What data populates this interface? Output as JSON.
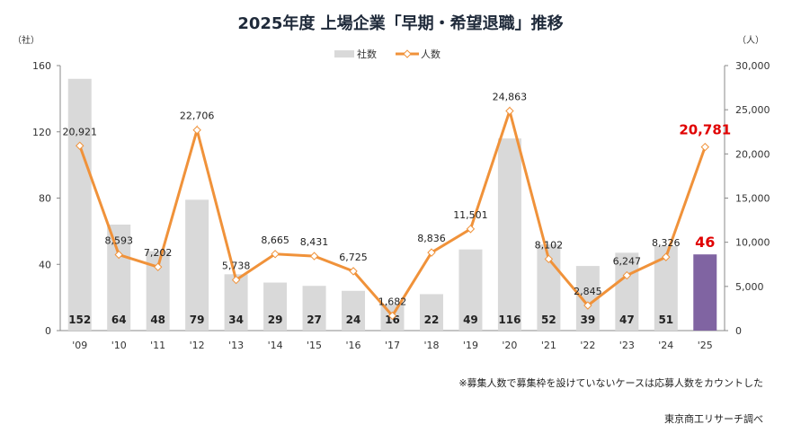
{
  "chart_data": {
    "type": "bar+line",
    "title": "2025年度  上場企業「早期・希望退職」推移",
    "ylabel_left": "（社）",
    "ylabel_right": "（人）",
    "categories": [
      "'09",
      "'10",
      "'11",
      "'12",
      "'13",
      "'14",
      "'15",
      "'16",
      "'17",
      "'18",
      "'19",
      "'20",
      "'21",
      "'22",
      "'23",
      "'24",
      "'25"
    ],
    "ylim_left": [
      0,
      160
    ],
    "yticks_left": [
      0,
      40,
      80,
      120,
      160
    ],
    "ylim_right": [
      0,
      30000
    ],
    "yticks_right": [
      "0",
      "5,000",
      "10,000",
      "15,000",
      "20,000",
      "25,000",
      "30,000"
    ],
    "grid": false,
    "legend_position": "top-center",
    "series": [
      {
        "name": "社数",
        "type": "bar",
        "axis": "left",
        "color": "#d9d9d9",
        "highlight_color": "#8064a2",
        "values": [
          152,
          64,
          48,
          79,
          34,
          29,
          27,
          24,
          16,
          22,
          49,
          116,
          52,
          39,
          47,
          51,
          46
        ]
      },
      {
        "name": "人数",
        "type": "line",
        "axis": "right",
        "color": "#f0923a",
        "values": [
          20921,
          8593,
          7202,
          22706,
          5738,
          8665,
          8431,
          6725,
          1682,
          8836,
          11501,
          24863,
          8102,
          2845,
          6247,
          8326,
          20781
        ],
        "labels": [
          "20,921",
          "8,593",
          "7,202",
          "22,706",
          "5,738",
          "8,665",
          "8,431",
          "6,725",
          "1,682",
          "8,836",
          "11,501",
          "24,863",
          "8,102",
          "2,845",
          "6,247",
          "8,326",
          "20,781"
        ]
      }
    ],
    "highlight_label_color": "#e00000"
  },
  "note": "※募集人数で募集枠を設けていないケースは応募人数をカウントした",
  "source": "東京商工リサーチ調べ"
}
